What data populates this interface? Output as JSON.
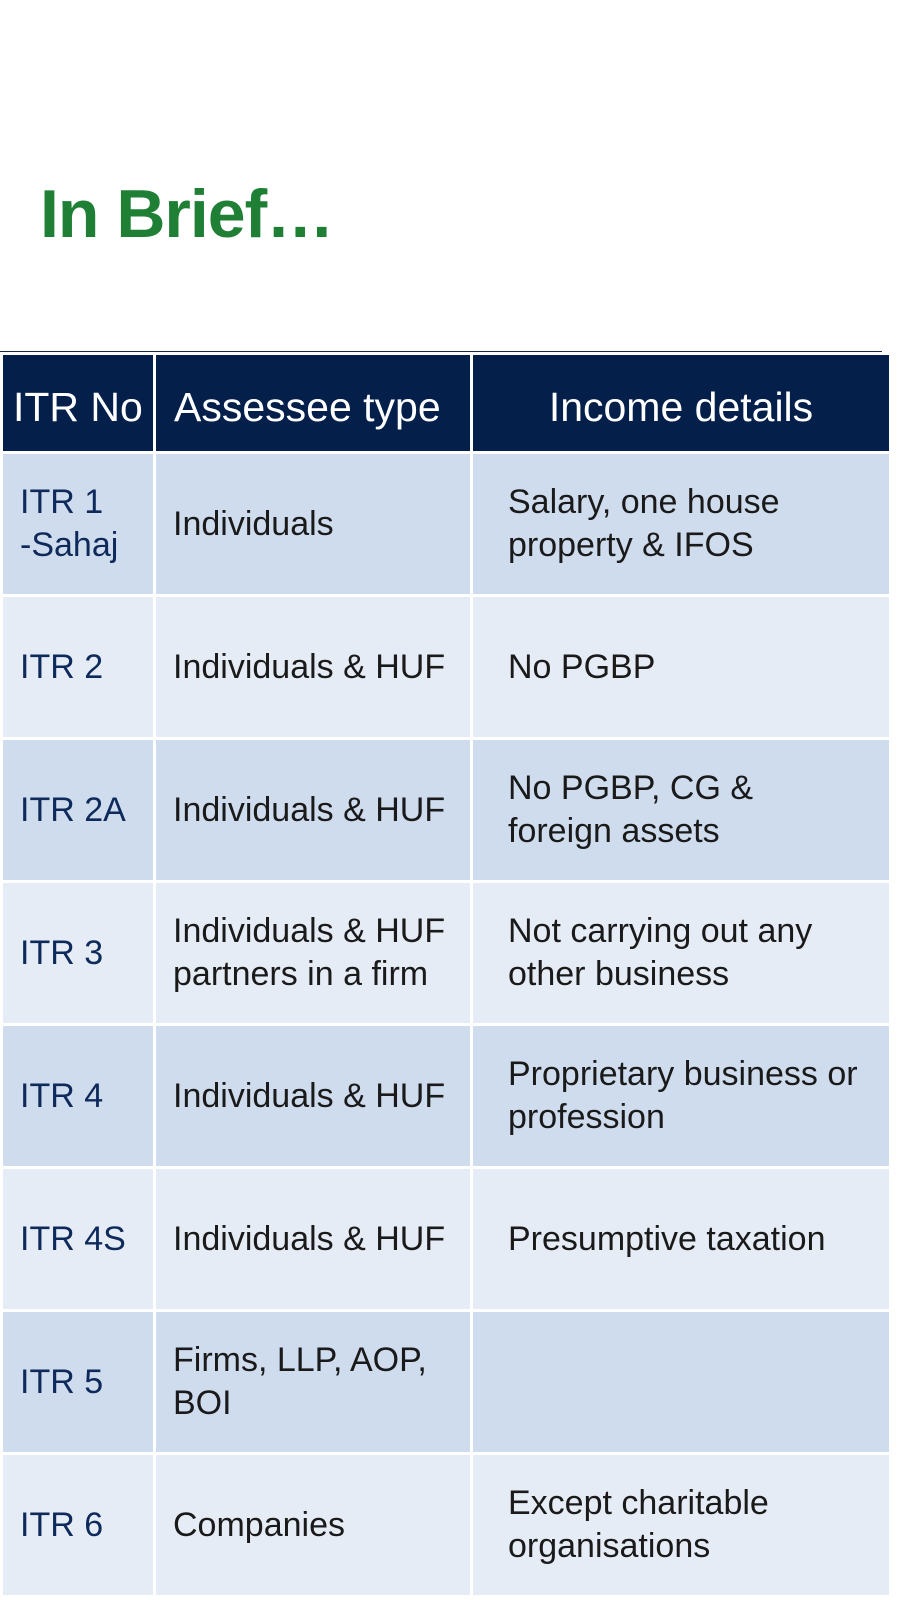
{
  "title": "In Brief…",
  "table": {
    "headers": [
      "ITR No",
      "Assessee type",
      "Income details"
    ],
    "rows": [
      {
        "itr": "ITR 1 -Sahaj",
        "assessee": "Individuals",
        "income": "Salary, one house property & IFOS"
      },
      {
        "itr": "ITR 2",
        "assessee": "Individuals & HUF",
        "income": "No PGBP"
      },
      {
        "itr": "ITR 2A",
        "assessee": "Individuals & HUF",
        "income": "No PGBP, CG & foreign assets"
      },
      {
        "itr": "ITR 3",
        "assessee": "Individuals & HUF partners in a firm",
        "income": "Not carrying out any other business"
      },
      {
        "itr": "ITR 4",
        "assessee": "Individuals & HUF",
        "income": "Proprietary business or profession"
      },
      {
        "itr": "ITR 4S",
        "assessee": "Individuals & HUF",
        "income": "Presumptive taxation"
      },
      {
        "itr": "ITR 5",
        "assessee": "Firms, LLP, AOP, BOI",
        "income": ""
      },
      {
        "itr": "ITR 6",
        "assessee": "Companies",
        "income": "Except charitable organisations"
      }
    ]
  },
  "colors": {
    "title": "#1f7f35",
    "header_bg": "#031f4a",
    "row_dark": "#cfdcee",
    "row_light": "#e6ecf6"
  }
}
